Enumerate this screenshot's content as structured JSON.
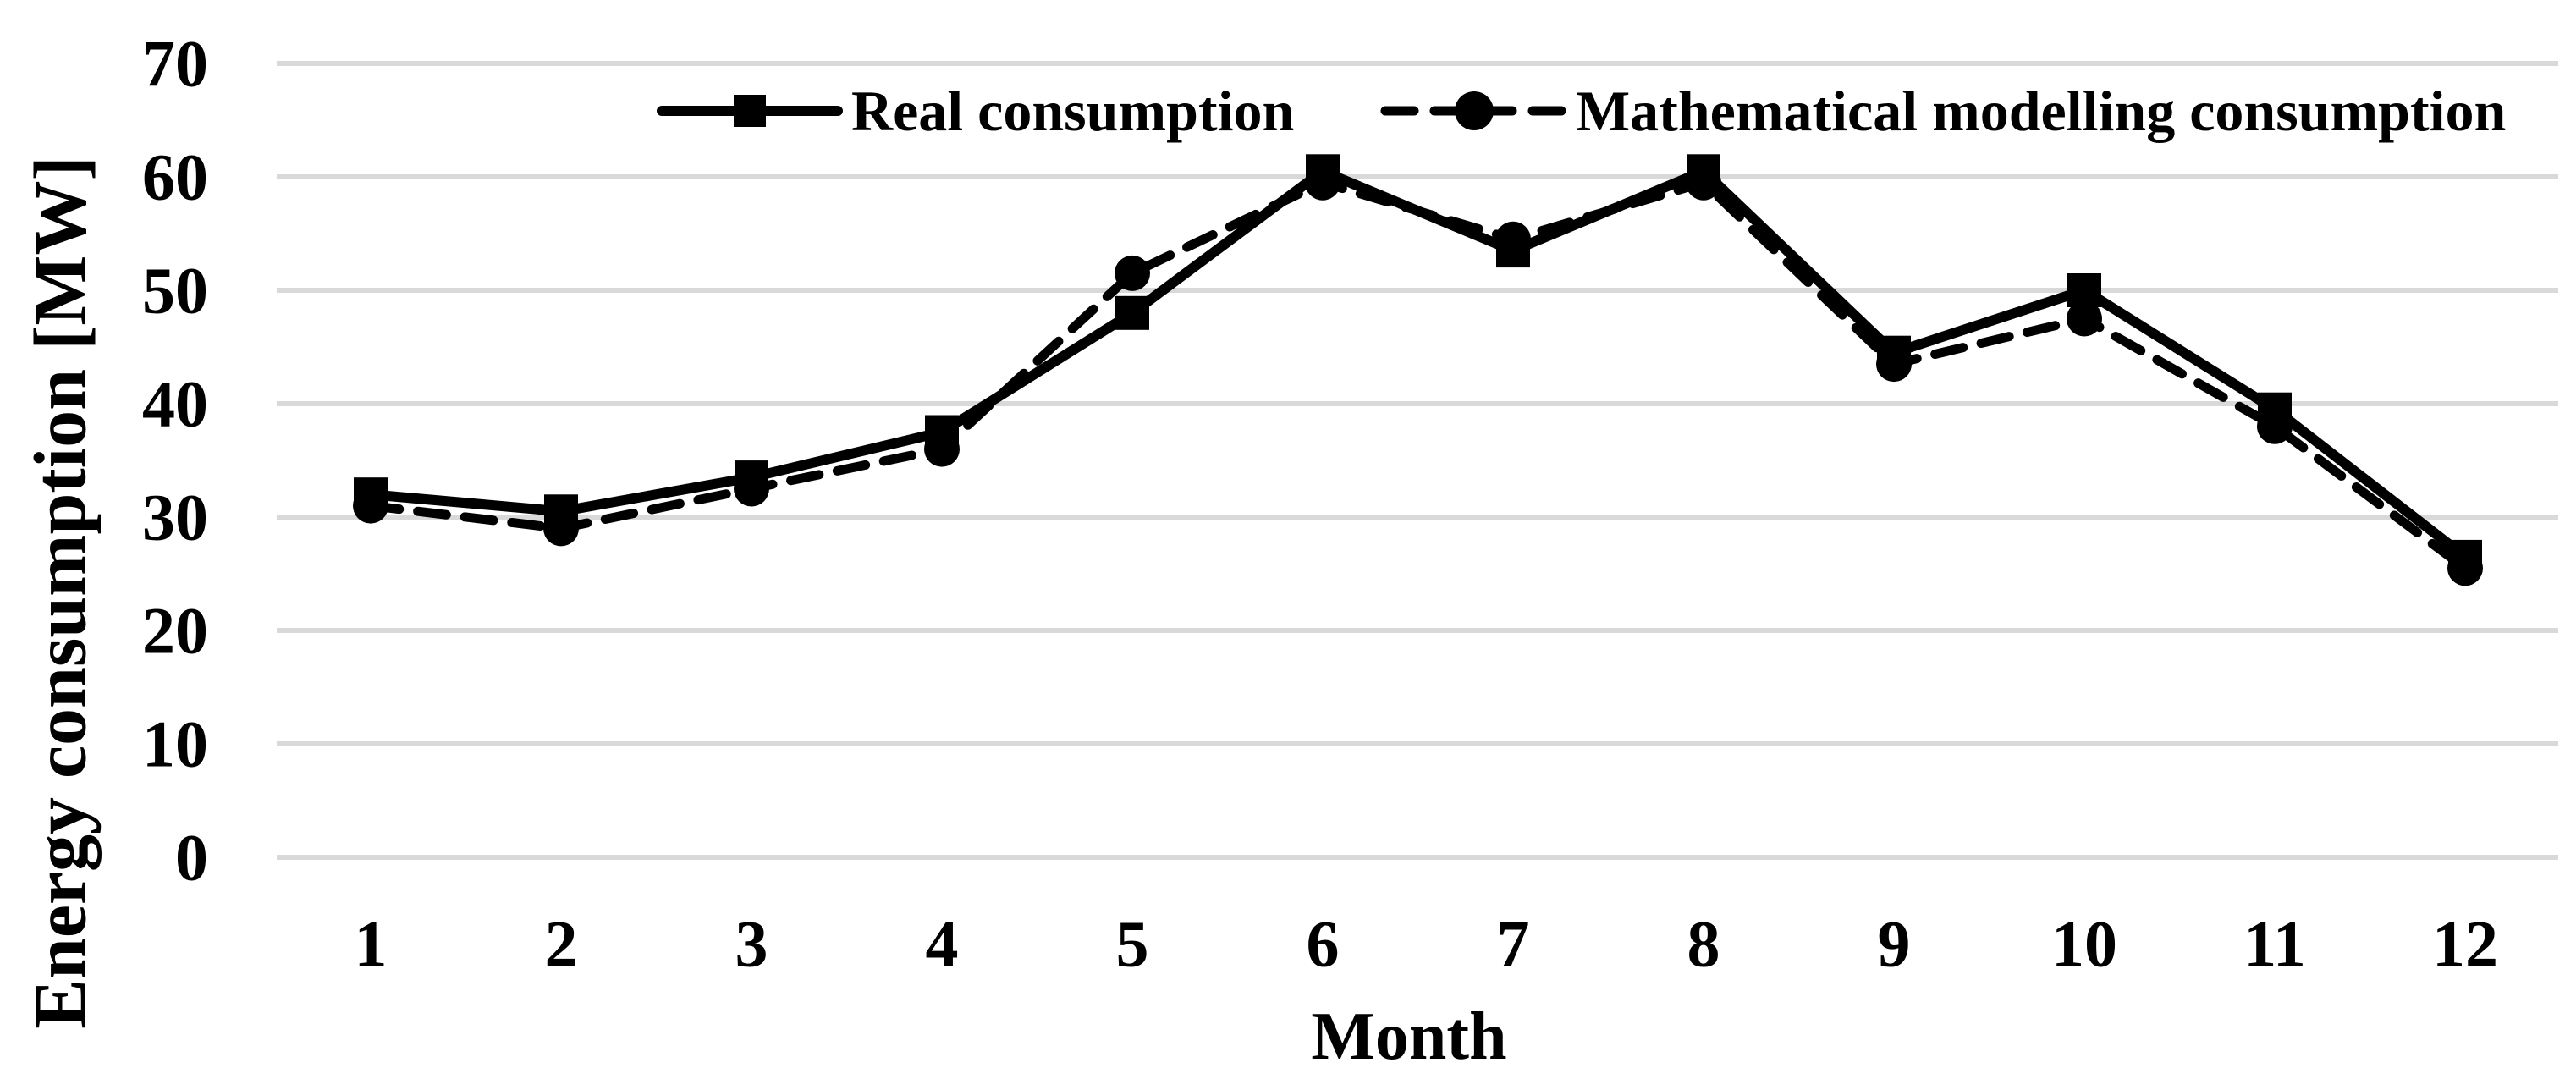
{
  "chart_data": {
    "type": "line",
    "title": "",
    "xlabel": "Month",
    "ylabel": "Energy consumption [MW]",
    "categories": [
      "1",
      "2",
      "3",
      "4",
      "5",
      "6",
      "7",
      "8",
      "9",
      "10",
      "11",
      "12"
    ],
    "series": [
      {
        "name": "Real consumption",
        "marker": "square",
        "line_style": "solid",
        "values": [
          32,
          30.5,
          33.5,
          37.5,
          48,
          60.5,
          53.5,
          60.5,
          44.5,
          50,
          39.5,
          26.5
        ]
      },
      {
        "name": "Mathematical modelling consumption",
        "marker": "circle",
        "line_style": "dashed",
        "values": [
          31,
          29,
          32.5,
          36,
          51.5,
          59.5,
          54.5,
          59.5,
          43.5,
          47.5,
          38,
          25.5
        ]
      }
    ],
    "ylim": [
      0,
      70
    ],
    "yticks": [
      0,
      10,
      20,
      30,
      40,
      50,
      60,
      70
    ],
    "grid": "horizontal",
    "legend_position": "top",
    "colors": {
      "series": "#000000",
      "gridline": "#d9d9d9",
      "background": "#ffffff"
    }
  }
}
